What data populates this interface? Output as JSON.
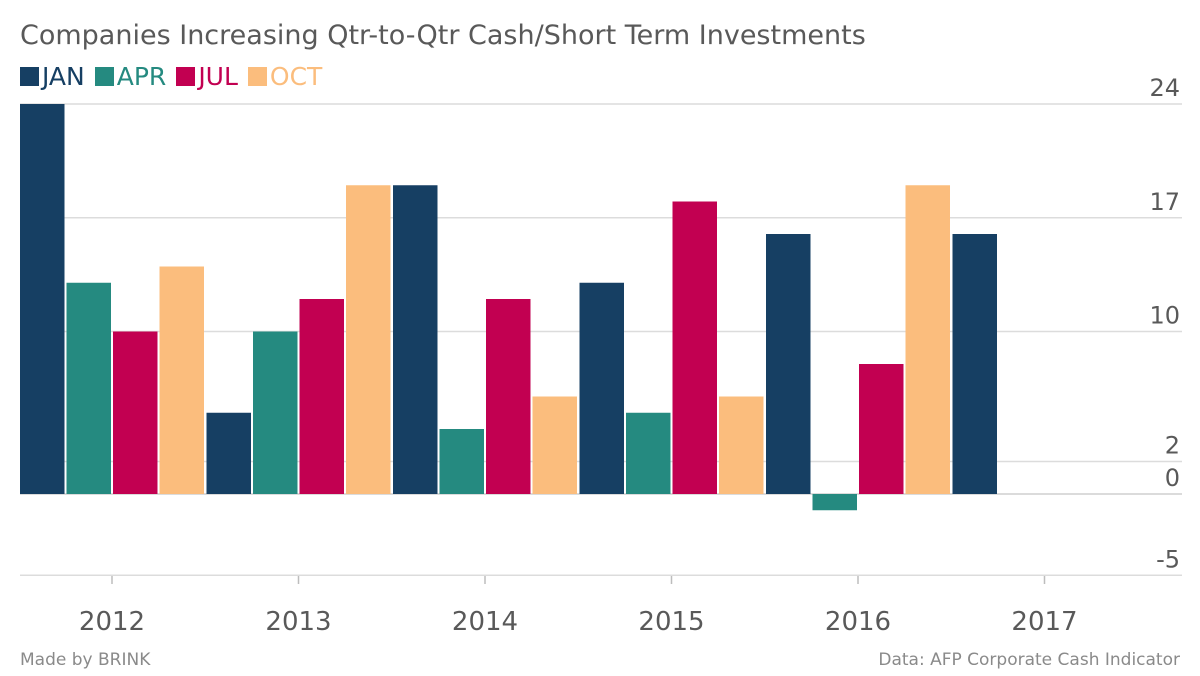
{
  "title": "Companies Increasing Qtr-to-Qtr Cash/Short Term Investments",
  "legend": [
    {
      "name": "JAN",
      "color": "#163f63"
    },
    {
      "name": "APR",
      "color": "#258a80"
    },
    {
      "name": "JUL",
      "color": "#c20051"
    },
    {
      "name": "OCT",
      "color": "#fbbd7d"
    }
  ],
  "footer": {
    "credit": "Made by BRINK",
    "source": "Data: AFP Corporate Cash Indicator"
  },
  "chart_data": {
    "type": "bar",
    "title": "Companies Increasing Qtr-to-Qtr Cash/Short Term Investments",
    "categories": [
      "2012",
      "2013",
      "2014",
      "2015",
      "2016",
      "2017"
    ],
    "series": [
      {
        "name": "JAN",
        "values": [
          24,
          5,
          19,
          13,
          16,
          16
        ]
      },
      {
        "name": "APR",
        "values": [
          13,
          10,
          4,
          5,
          -1,
          null
        ]
      },
      {
        "name": "JUL",
        "values": [
          10,
          12,
          12,
          18,
          8,
          null
        ]
      },
      {
        "name": "OCT",
        "values": [
          14,
          19,
          6,
          6,
          19,
          null
        ]
      }
    ],
    "y_ticks": [
      24,
      17,
      10,
      2,
      0,
      -5
    ],
    "ylim": [
      -5,
      24
    ],
    "grid": true,
    "legend_position": "top-left",
    "y_axis_side": "right"
  }
}
